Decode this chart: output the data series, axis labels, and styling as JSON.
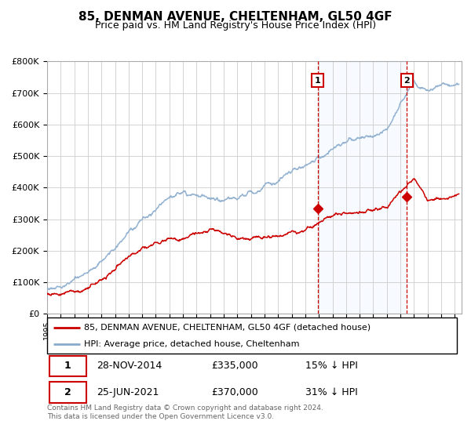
{
  "title": "85, DENMAN AVENUE, CHELTENHAM, GL50 4GF",
  "subtitle": "Price paid vs. HM Land Registry's House Price Index (HPI)",
  "title_fontsize": 11,
  "subtitle_fontsize": 9,
  "background_color": "#ffffff",
  "plot_bg_color": "#ffffff",
  "grid_color": "#cccccc",
  "sale1_date_label": "28-NOV-2014",
  "sale1_price": 335000,
  "sale1_year": 2014.91,
  "sale2_date_label": "25-JUN-2021",
  "sale2_price": 370000,
  "sale2_year": 2021.48,
  "legend_line1": "85, DENMAN AVENUE, CHELTENHAM, GL50 4GF (detached house)",
  "legend_line2": "HPI: Average price, detached house, Cheltenham",
  "table_row1": [
    "1",
    "28-NOV-2014",
    "£335,000",
    "15% ↓ HPI"
  ],
  "table_row2": [
    "2",
    "25-JUN-2021",
    "£370,000",
    "31% ↓ HPI"
  ],
  "footer": "Contains HM Land Registry data © Crown copyright and database right 2024.\nThis data is licensed under the Open Government Licence v3.0.",
  "red_color": "#cc0000",
  "blue_color": "#88aacc",
  "shade_color": "#ddeeff",
  "vline_color": "#cc0000",
  "ylim": [
    0,
    800000
  ],
  "xlim_start": 1995,
  "xlim_end": 2025.5,
  "hpi_seed": 1,
  "price_seed": 2
}
